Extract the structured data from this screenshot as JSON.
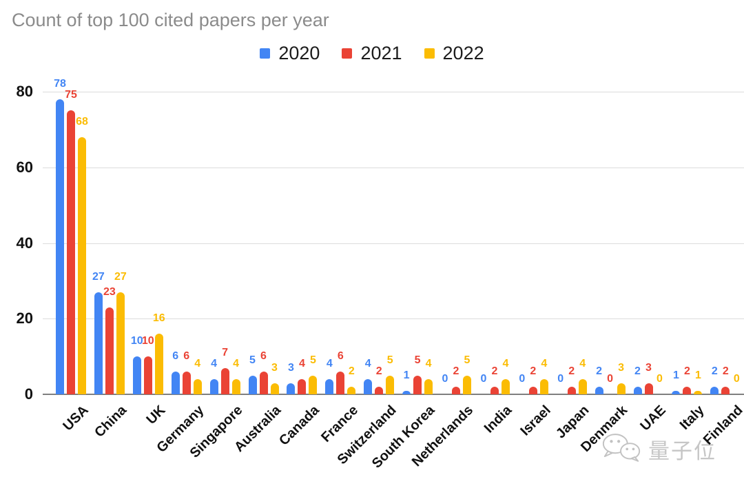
{
  "chart_data": {
    "type": "bar",
    "title": "Count of top 100 cited papers per year",
    "categories": [
      "USA",
      "China",
      "UK",
      "Germany",
      "Singapore",
      "Australia",
      "Canada",
      "France",
      "Switzerland",
      "South Korea",
      "Netherlands",
      "India",
      "Israel",
      "Japan",
      "Denmark",
      "UAE",
      "Italy",
      "Finland"
    ],
    "series": [
      {
        "name": "2020",
        "color": "#4285F4",
        "values": [
          78,
          27,
          10,
          6,
          4,
          5,
          3,
          4,
          4,
          1,
          0,
          0,
          0,
          0,
          2,
          2,
          1,
          2
        ]
      },
      {
        "name": "2021",
        "color": "#EA4335",
        "values": [
          75,
          23,
          10,
          6,
          7,
          6,
          4,
          6,
          2,
          5,
          2,
          2,
          2,
          2,
          0,
          3,
          2,
          2
        ]
      },
      {
        "name": "2022",
        "color": "#FBBC04",
        "values": [
          68,
          27,
          16,
          4,
          4,
          3,
          5,
          2,
          5,
          4,
          5,
          4,
          4,
          4,
          3,
          0,
          1,
          0
        ]
      }
    ],
    "xlabel": "",
    "ylabel": "",
    "y_ticks": [
      0,
      20,
      40,
      60,
      80
    ],
    "ylim": [
      0,
      80
    ],
    "grid": true,
    "legend_position": "top",
    "data_labels": true,
    "title_color": "#8b8b8b",
    "axis_text_color": "#111111",
    "gridline_color": "#dcdcdc",
    "baseline_color": "#7f7f7f"
  },
  "watermark": {
    "icon": "wechat-icon",
    "text": "量子位"
  }
}
